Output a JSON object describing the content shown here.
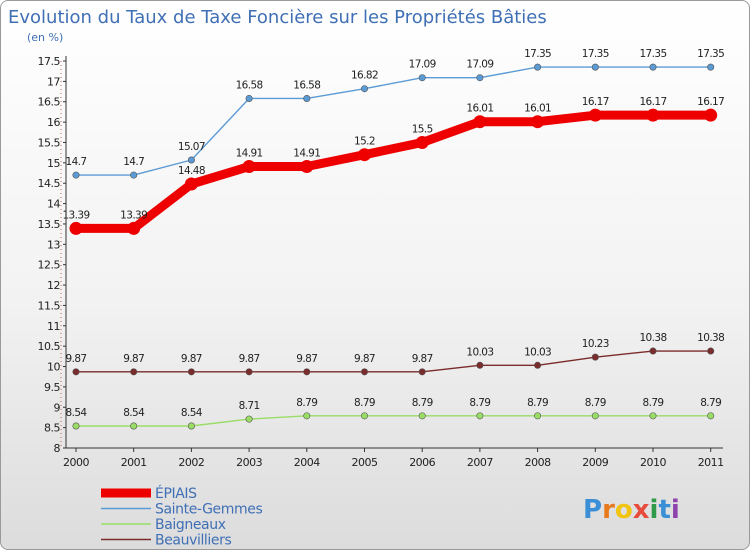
{
  "chart_data": {
    "type": "line",
    "title": "Evolution du Taux de Taxe Foncière sur les Propriétés Bâties",
    "subtitle": "(en %)",
    "x": [
      "2000",
      "2001",
      "2002",
      "2003",
      "2004",
      "2005",
      "2006",
      "2007",
      "2008",
      "2009",
      "2010",
      "2011"
    ],
    "ylim": [
      8,
      17.5
    ],
    "yticks": [
      "8",
      "8.5",
      "9",
      "9.5",
      "10",
      "10.5",
      "11",
      "11.5",
      "12",
      "12.5",
      "13",
      "13.5",
      "14",
      "14.5",
      "15",
      "15.5",
      "16",
      "16.5",
      "17",
      "17.5"
    ],
    "grid": false,
    "legend_position": "bottom-left",
    "series": [
      {
        "name": "Sainte-Gemmes",
        "color": "#5b9bd5",
        "values": [
          14.7,
          14.7,
          15.07,
          16.58,
          16.58,
          16.82,
          17.09,
          17.09,
          17.35,
          17.35,
          17.35,
          17.35
        ],
        "labels": [
          "14.7",
          "14.7",
          "15.07",
          "16.58",
          "16.58",
          "16.82",
          "17.09",
          "17.09",
          "17.35",
          "17.35",
          "17.35",
          "17.35"
        ]
      },
      {
        "name": "ÉPIAIS",
        "color": "#ee0000",
        "values": [
          13.39,
          13.39,
          14.48,
          14.91,
          14.91,
          15.2,
          15.5,
          16.01,
          16.01,
          16.17,
          16.17,
          16.17
        ],
        "labels": [
          "13.39",
          "13.39",
          "14.48",
          "14.91",
          "14.91",
          "15.2",
          "15.5",
          "16.01",
          "16.01",
          "16.17",
          "16.17",
          "16.17"
        ]
      },
      {
        "name": "Beauvilliers",
        "color": "#7a2b2b",
        "values": [
          9.87,
          9.87,
          9.87,
          9.87,
          9.87,
          9.87,
          9.87,
          10.03,
          10.03,
          10.23,
          10.38,
          10.38
        ],
        "labels": [
          "9.87",
          "9.87",
          "9.87",
          "9.87",
          "9.87",
          "9.87",
          "9.87",
          "10.03",
          "10.03",
          "10.23",
          "10.38",
          "10.38"
        ]
      },
      {
        "name": "Baigneaux",
        "color": "#99dd66",
        "values": [
          8.54,
          8.54,
          8.54,
          8.71,
          8.79,
          8.79,
          8.79,
          8.79,
          8.79,
          8.79,
          8.79,
          8.79
        ],
        "labels": [
          "8.54",
          "8.54",
          "8.54",
          "8.71",
          "8.79",
          "8.79",
          "8.79",
          "8.79",
          "8.79",
          "8.79",
          "8.79",
          "8.79"
        ]
      }
    ],
    "legend": [
      {
        "name": "ÉPIAIS",
        "color": "#ee0000"
      },
      {
        "name": "Sainte-Gemmes",
        "color": "#5b9bd5"
      },
      {
        "name": "Baigneaux",
        "color": "#99dd66"
      },
      {
        "name": "Beauvilliers",
        "color": "#7a2b2b"
      }
    ]
  },
  "logo": {
    "text": "Proxiti",
    "letters": [
      "P",
      "r",
      "o",
      "x",
      "i",
      "t",
      "i"
    ],
    "colors": [
      "#3a8fd6",
      "#e87a1e",
      "#f1c40f",
      "#e74c3c",
      "#2e9a4a",
      "#3a8fd6",
      "#8e44ad"
    ]
  }
}
